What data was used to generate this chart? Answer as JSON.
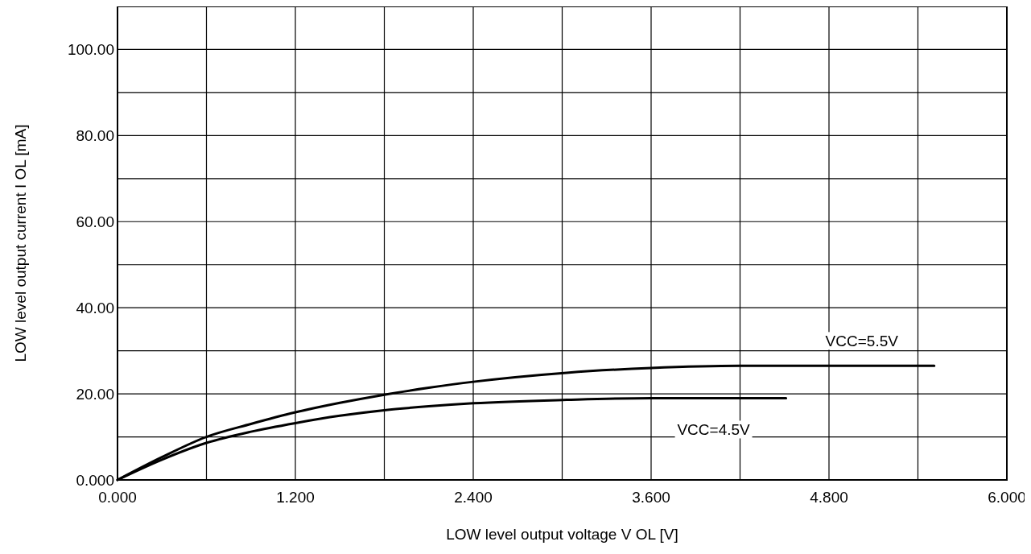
{
  "chart_data": {
    "type": "line",
    "xlabel": "LOW level output voltage  V OL [V]",
    "ylabel": "LOW level output current  I OL [mA]",
    "xlim": [
      0,
      6
    ],
    "ylim": [
      0,
      110
    ],
    "xticks": [
      {
        "value": 0,
        "label": "0.000"
      },
      {
        "value": 0.6,
        "label": null
      },
      {
        "value": 1.2,
        "label": "1.200"
      },
      {
        "value": 1.8,
        "label": null
      },
      {
        "value": 2.4,
        "label": "2.400"
      },
      {
        "value": 3,
        "label": null
      },
      {
        "value": 3.6,
        "label": "3.600"
      },
      {
        "value": 4.2,
        "label": null
      },
      {
        "value": 4.8,
        "label": "4.800"
      },
      {
        "value": 5.4,
        "label": null
      },
      {
        "value": 6,
        "label": "6.000"
      }
    ],
    "yticks": [
      {
        "value": 0,
        "label": "0.000"
      },
      {
        "value": 10,
        "label": null
      },
      {
        "value": 20,
        "label": "20.00"
      },
      {
        "value": 30,
        "label": null
      },
      {
        "value": 40,
        "label": "40.00"
      },
      {
        "value": 50,
        "label": null
      },
      {
        "value": 60,
        "label": "60.00"
      },
      {
        "value": 70,
        "label": null
      },
      {
        "value": 80,
        "label": "80.00"
      },
      {
        "value": 90,
        "label": null
      },
      {
        "value": 100,
        "label": "100.00"
      }
    ],
    "grid": true,
    "marker": "none",
    "line_style": "solid",
    "series": [
      {
        "name": "VCC=5.5V",
        "color": "#000000",
        "x": [
          0,
          0.3,
          0.6,
          0.9,
          1.2,
          1.5,
          1.8,
          2.1,
          2.4,
          3.03,
          3.6,
          4.2,
          4.8,
          5.51
        ],
        "values": [
          0,
          5.3,
          10.0,
          13.0,
          15.7,
          17.9,
          19.8,
          21.4,
          22.8,
          24.9,
          26.0,
          26.5,
          26.5,
          26.5
        ]
      },
      {
        "name": "VCC=4.5V",
        "color": "#000000",
        "x": [
          0,
          0.3,
          0.6,
          0.9,
          1.2,
          1.5,
          1.8,
          2.1,
          2.4,
          3.03,
          3.6,
          4.2,
          4.51
        ],
        "values": [
          0,
          4.7,
          8.6,
          11.2,
          13.2,
          14.9,
          16.2,
          17.1,
          17.8,
          18.6,
          19.0,
          19.0,
          19.0
        ]
      }
    ]
  }
}
